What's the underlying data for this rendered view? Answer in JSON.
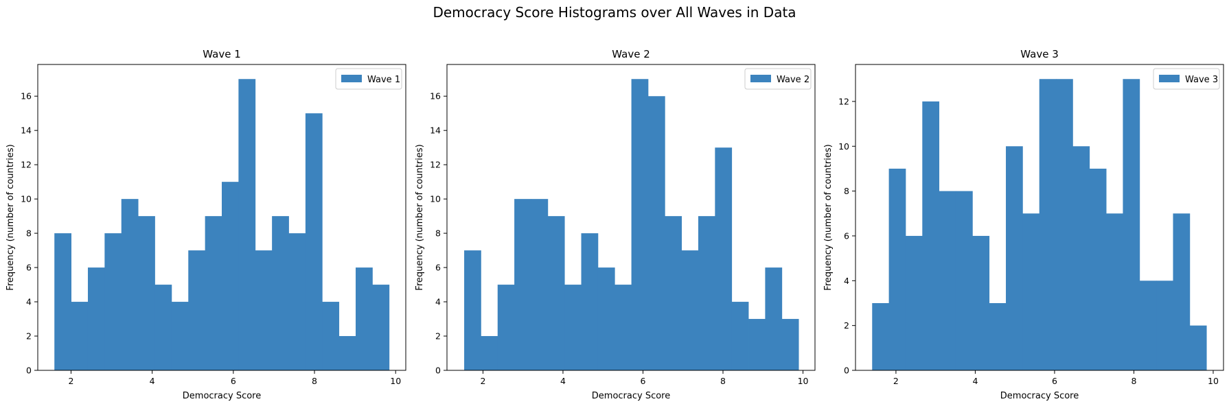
{
  "figure": {
    "title": "Democracy Score Histograms over All Waves in Data"
  },
  "chart_data": [
    {
      "type": "bar",
      "title": "Wave 1",
      "xlabel": "Democracy Score",
      "ylabel": "Frequency (number of countries)",
      "legend": "top-right",
      "grid": false,
      "color": "#3c83be",
      "xlim": [
        1.18,
        10.25
      ],
      "ylim": [
        0,
        17.85
      ],
      "xticks": [
        2,
        4,
        6,
        8,
        10
      ],
      "yticks": [
        0,
        2,
        4,
        6,
        8,
        10,
        12,
        14,
        16
      ],
      "series": [
        {
          "name": "Wave 1",
          "bin_start": 1.59,
          "bin_width": 0.4125,
          "values": [
            8,
            4,
            6,
            8,
            10,
            9,
            5,
            4,
            7,
            9,
            11,
            17,
            7,
            9,
            8,
            15,
            4,
            2,
            6,
            5
          ]
        }
      ]
    },
    {
      "type": "bar",
      "title": "Wave 2",
      "xlabel": "Democracy Score",
      "ylabel": "Frequency (number of countries)",
      "legend": "top-right",
      "grid": false,
      "color": "#3c83be",
      "xlim": [
        1.1,
        10.3
      ],
      "ylim": [
        0,
        17.85
      ],
      "xticks": [
        2,
        4,
        6,
        8,
        10
      ],
      "yticks": [
        0,
        2,
        4,
        6,
        8,
        10,
        12,
        14,
        16
      ],
      "series": [
        {
          "name": "Wave 2",
          "bin_start": 1.53,
          "bin_width": 0.418,
          "values": [
            7,
            2,
            5,
            10,
            10,
            9,
            5,
            8,
            6,
            5,
            17,
            16,
            9,
            7,
            9,
            13,
            4,
            3,
            6,
            3
          ]
        }
      ]
    },
    {
      "type": "bar",
      "title": "Wave 3",
      "xlabel": "Democracy Score",
      "ylabel": "Frequency (number of countries)",
      "legend": "top-right",
      "grid": false,
      "color": "#3c83be",
      "xlim": [
        0.98,
        10.26
      ],
      "ylim": [
        0,
        13.65
      ],
      "xticks": [
        2,
        4,
        6,
        8,
        10
      ],
      "yticks": [
        0,
        2,
        4,
        6,
        8,
        10,
        12
      ],
      "series": [
        {
          "name": "Wave 3",
          "bin_start": 1.4,
          "bin_width": 0.4215,
          "values": [
            3,
            9,
            6,
            12,
            8,
            8,
            6,
            3,
            10,
            7,
            13,
            13,
            10,
            9,
            7,
            13,
            4,
            4,
            7,
            2
          ]
        }
      ]
    }
  ]
}
